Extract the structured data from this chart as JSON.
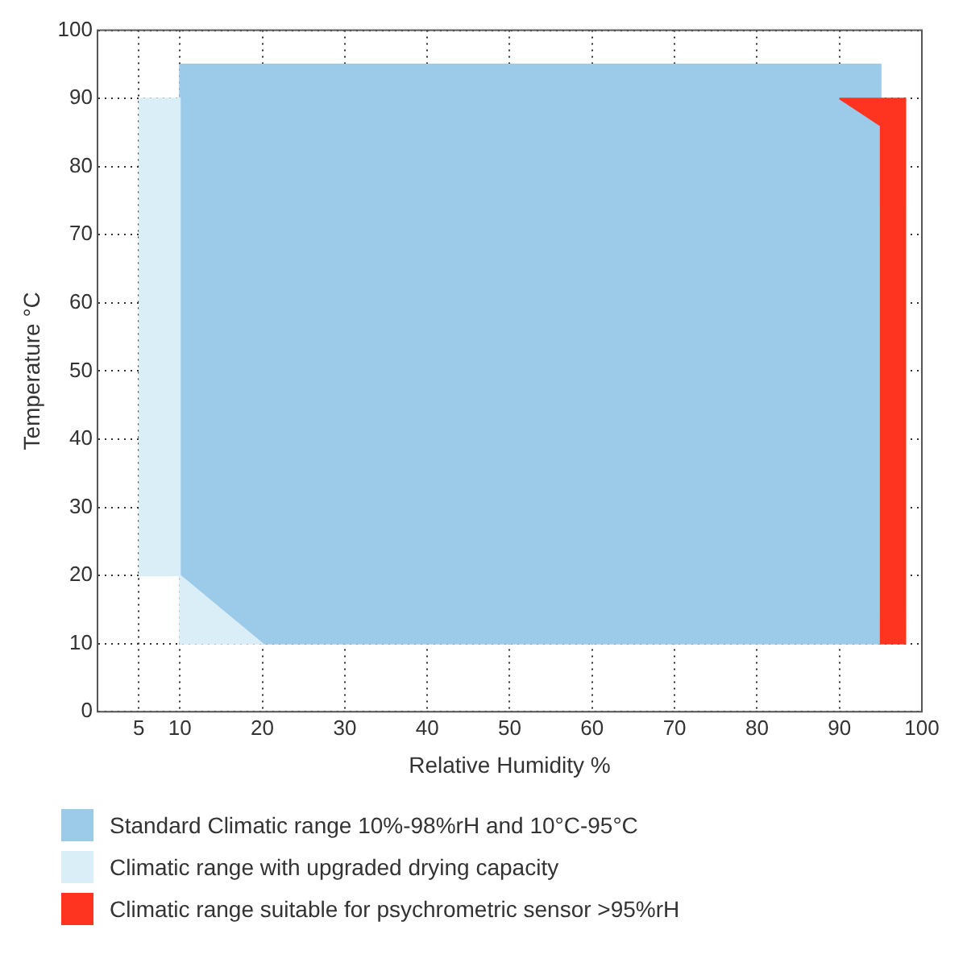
{
  "chart_data": {
    "type": "area",
    "xlabel": "Relative Humidity %",
    "ylabel": "Temperature °C",
    "xlim": [
      0,
      100
    ],
    "ylim": [
      0,
      100
    ],
    "xticks": [
      5,
      10,
      20,
      30,
      40,
      50,
      60,
      70,
      80,
      90,
      100
    ],
    "yticks": [
      0,
      10,
      20,
      30,
      40,
      50,
      60,
      70,
      80,
      90,
      100
    ],
    "grid": true,
    "legend": "bottom",
    "line_style": "dotted",
    "series": [
      {
        "name": "Standard Climatic range 10%-98%rH and 10°C-95°C",
        "color": "#9ccbea",
        "x": [
          10,
          95,
          95,
          20,
          10,
          10
        ],
        "values": [
          95,
          95,
          10,
          10,
          20,
          95
        ]
      },
      {
        "name": "Climatic range with upgraded drying capacity",
        "color": "#daeef8",
        "x": [
          5,
          10,
          10,
          20,
          10,
          5
        ],
        "values": [
          90,
          90,
          10,
          10,
          20,
          20
        ]
      },
      {
        "name": "Climatic range suitable for psychrometric sensor >95%rH",
        "color": "#ff3420",
        "x": [
          90,
          98,
          98,
          95,
          95,
          90
        ],
        "values": [
          90,
          90,
          10,
          10,
          86,
          90
        ]
      }
    ]
  }
}
